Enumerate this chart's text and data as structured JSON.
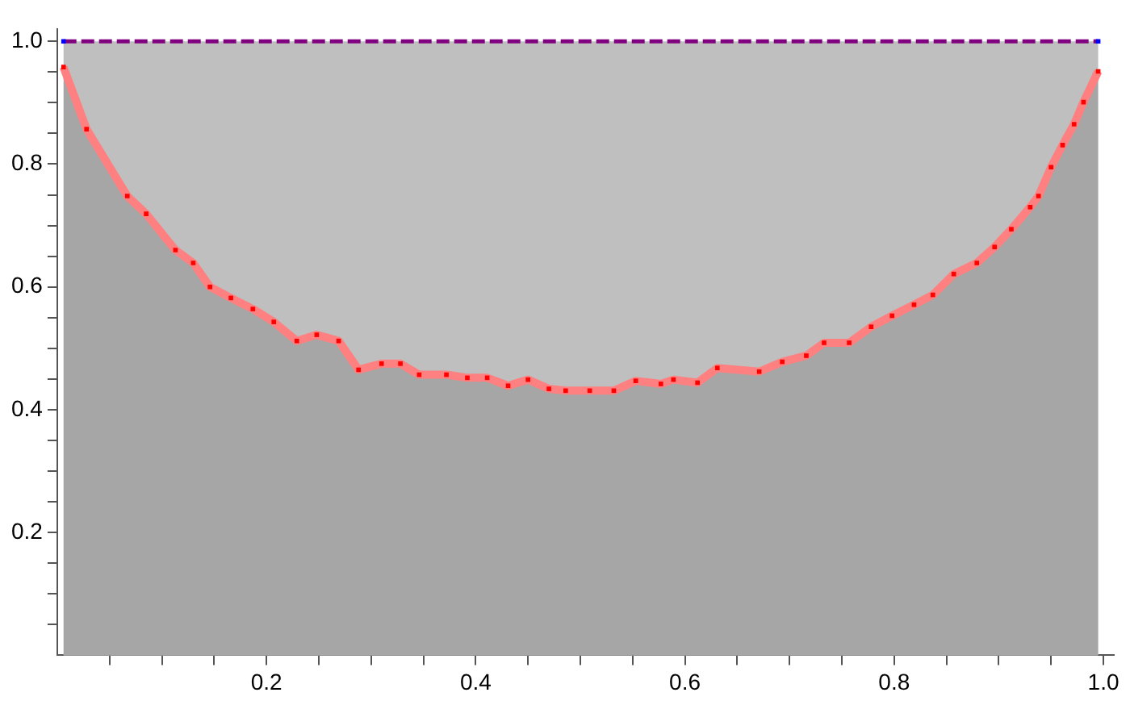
{
  "chart_data": {
    "type": "area",
    "xlim": [
      0,
      1.01
    ],
    "ylim": [
      0,
      1.02
    ],
    "xticks": [
      {
        "value": 0.05,
        "label": null
      },
      {
        "value": 0.1,
        "label": null
      },
      {
        "value": 0.15,
        "label": null
      },
      0.2,
      {
        "value": 0.25,
        "label": null
      },
      {
        "value": 0.3,
        "label": null
      },
      {
        "value": 0.35,
        "label": null
      },
      0.4,
      {
        "value": 0.45,
        "label": null
      },
      {
        "value": 0.5,
        "label": null
      },
      {
        "value": 0.55,
        "label": null
      },
      0.6,
      {
        "value": 0.65,
        "label": null
      },
      {
        "value": 0.7,
        "label": null
      },
      {
        "value": 0.75,
        "label": null
      },
      0.8,
      {
        "value": 0.85,
        "label": null
      },
      {
        "value": 0.9,
        "label": null
      },
      {
        "value": 0.95,
        "label": null
      },
      {
        "value": 1.0,
        "label": "1.0"
      }
    ],
    "yticks": [
      {
        "value": 0.05,
        "label": null
      },
      {
        "value": 0.1,
        "label": null
      },
      {
        "value": 0.15,
        "label": null
      },
      0.2,
      {
        "value": 0.25,
        "label": null
      },
      {
        "value": 0.3,
        "label": null
      },
      {
        "value": 0.35,
        "label": null
      },
      0.4,
      {
        "value": 0.45,
        "label": null
      },
      {
        "value": 0.5,
        "label": null
      },
      {
        "value": 0.55,
        "label": null
      },
      0.6,
      {
        "value": 0.65,
        "label": null
      },
      {
        "value": 0.7,
        "label": null
      },
      {
        "value": 0.75,
        "label": null
      },
      0.8,
      {
        "value": 0.85,
        "label": null
      },
      {
        "value": 0.9,
        "label": null
      },
      {
        "value": 0.95,
        "label": null
      },
      {
        "value": 1.0,
        "label": "1.0"
      }
    ],
    "grid": false,
    "legend": false,
    "marker": "square",
    "series": [
      {
        "type": "line",
        "color": "#800080",
        "line_style": "dashed",
        "x": [
          0.006,
          0.995
        ],
        "values": [
          1,
          1
        ]
      },
      {
        "color": "#a6a6a6",
        "line_style": "solid",
        "x": [
          0.006,
          0.028,
          0.067,
          0.085,
          0.113,
          0.13,
          0.146,
          0.166,
          0.187,
          0.207,
          0.229,
          0.248,
          0.269,
          0.288,
          0.31,
          0.328,
          0.346,
          0.372,
          0.392,
          0.411,
          0.431,
          0.45,
          0.47,
          0.486,
          0.509,
          0.532,
          0.553,
          0.577,
          0.589,
          0.612,
          0.631,
          0.671,
          0.693,
          0.716,
          0.733,
          0.757,
          0.778,
          0.798,
          0.819,
          0.837,
          0.857,
          0.879,
          0.896,
          0.912,
          0.93,
          0.938,
          0.95,
          0.961,
          0.972,
          0.981,
          0.995
        ],
        "values": [
          0.958,
          0.857,
          0.748,
          0.719,
          0.66,
          0.639,
          0.6,
          0.582,
          0.564,
          0.543,
          0.512,
          0.522,
          0.512,
          0.465,
          0.475,
          0.475,
          0.457,
          0.457,
          0.452,
          0.452,
          0.439,
          0.449,
          0.434,
          0.431,
          0.431,
          0.431,
          0.447,
          0.442,
          0.449,
          0.444,
          0.468,
          0.462,
          0.478,
          0.488,
          0.509,
          0.509,
          0.535,
          0.553,
          0.571,
          0.587,
          0.621,
          0.639,
          0.665,
          0.694,
          0.73,
          0.748,
          0.795,
          0.831,
          0.865,
          0.901,
          0.951
        ]
      }
    ]
  }
}
